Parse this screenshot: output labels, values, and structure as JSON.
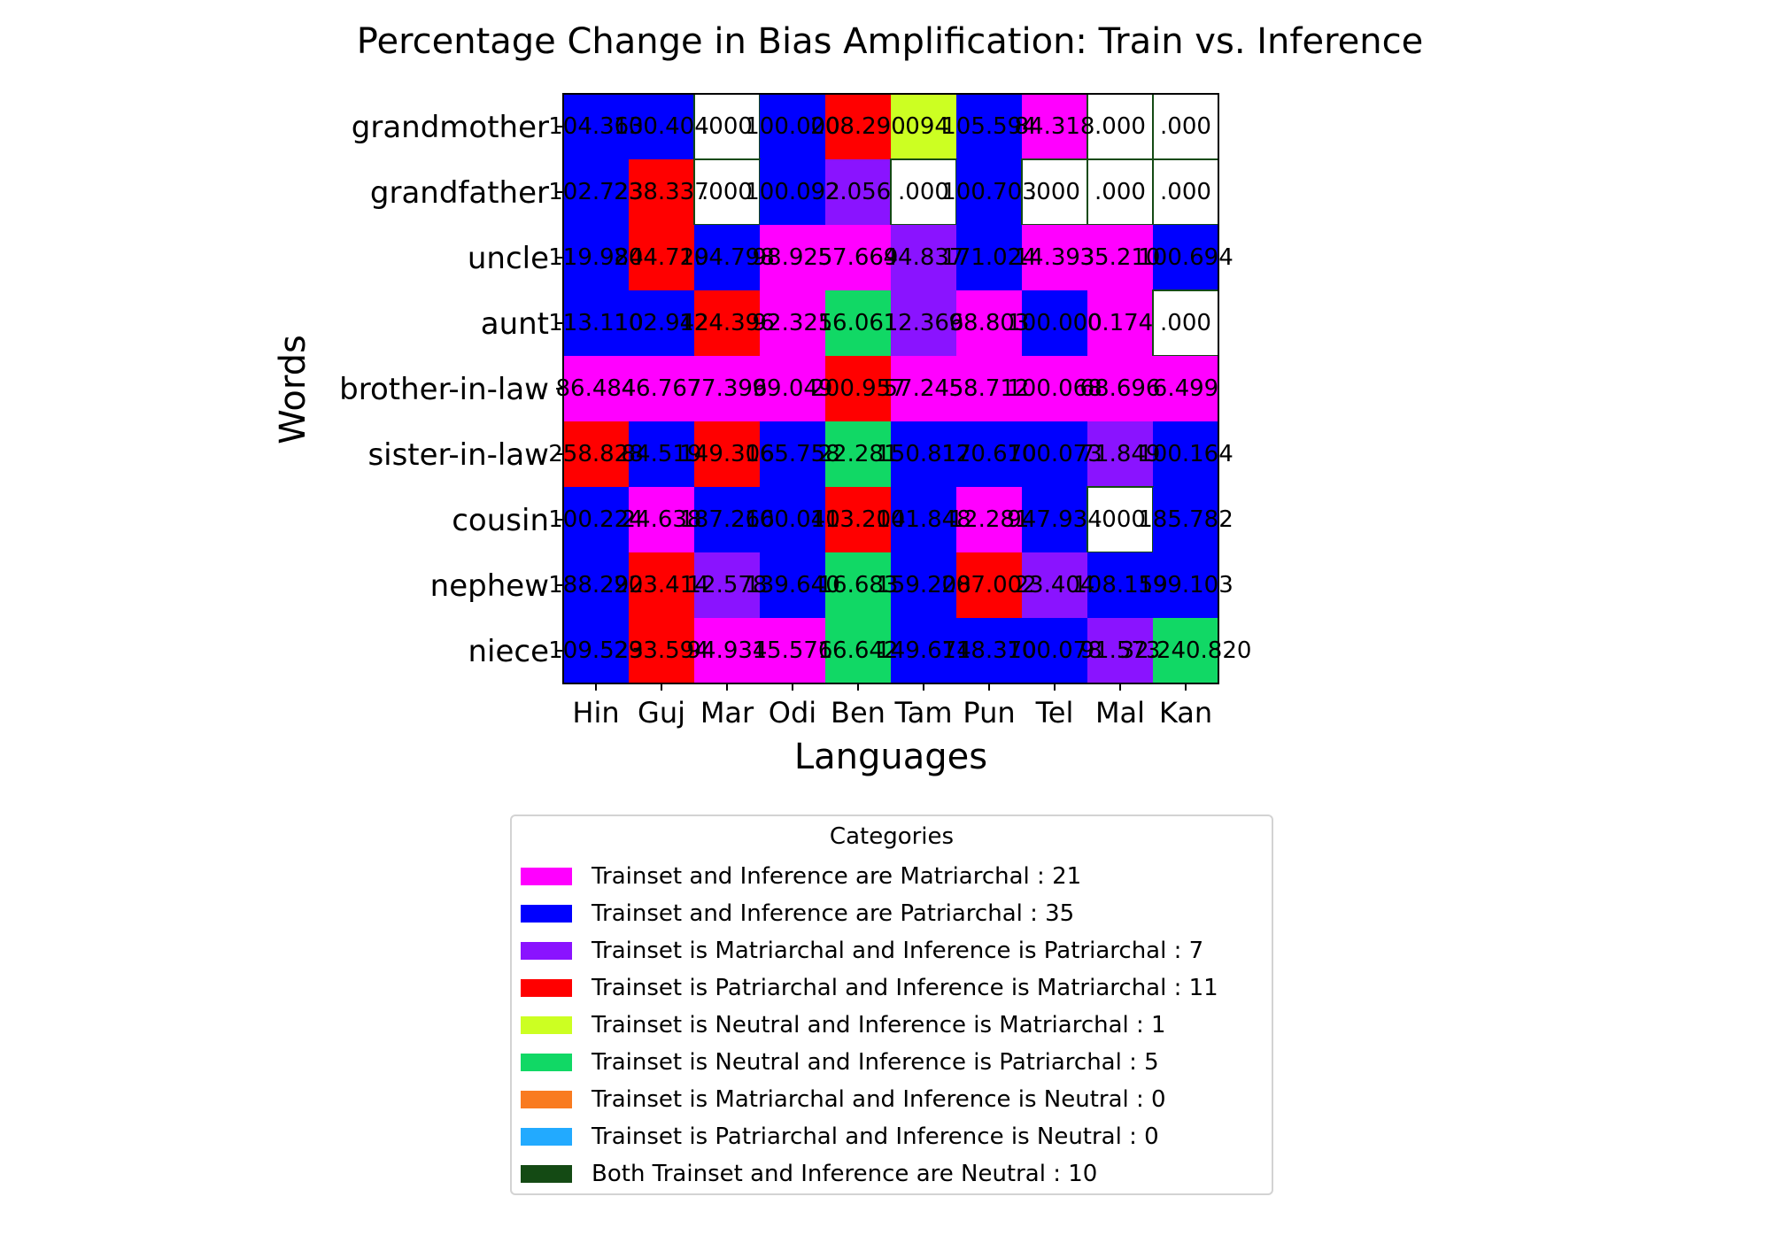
{
  "chart_data": {
    "type": "heatmap",
    "title": "Percentage Change in Bias Amplification: Train vs. Inference",
    "xlabel": "Languages",
    "ylabel": "Words",
    "x_categories": [
      "Hin",
      "Guj",
      "Mar",
      "Odi",
      "Ben",
      "Tam",
      "Pun",
      "Tel",
      "Mal",
      "Kan"
    ],
    "y_categories": [
      "grandmother",
      "grandfather",
      "uncle",
      "aunt",
      "brother-in-law",
      "sister-in-law",
      "cousin",
      "nephew",
      "niece"
    ],
    "cell_labels": [
      [
        "104.363",
        "100.404",
        ".000",
        "100.000",
        "208.290",
        ".094",
        "105.594",
        "84.318",
        ".000",
        ".000"
      ],
      [
        "102.723",
        "238.337",
        ".000",
        "100.092",
        "2.056",
        ".000",
        "100.703",
        ".000",
        ".000",
        ".000"
      ],
      [
        "119.984",
        "204.729",
        "104.798",
        "98.925",
        "57.669",
        "44.837",
        "171.024",
        "14.393",
        "35.210",
        "100.694"
      ],
      [
        "113.110",
        "102.942",
        "124.396",
        "92.325",
        "16.061",
        "12.366",
        "98.803",
        "100.000",
        "0.174",
        ".000"
      ],
      [
        "86.484",
        "46.767",
        "77.396",
        "99.049",
        "200.957",
        "57.245",
        "58.712",
        "100.068",
        "68.696",
        "6.499"
      ],
      [
        "258.828",
        "84.519",
        "149.306",
        "165.758",
        "22.281",
        "150.817",
        "120.670",
        "100.073",
        "71.849",
        "100.164"
      ],
      [
        "100.224",
        "24.638",
        "187.266",
        "100.040",
        "113.204",
        "101.848",
        "12.281",
        "947.934",
        ".000",
        "185.782"
      ],
      [
        "188.292",
        "203.414",
        "12.578",
        "139.640",
        "16.683",
        "159.208",
        "207.002",
        "23.404",
        "108.159",
        "199.103"
      ],
      [
        "109.523",
        "293.594",
        "94.934",
        "15.576",
        "16.642",
        "149.674",
        "118.370",
        "100.078",
        "91.573",
        "32.240.820"
      ]
    ],
    "cell_categories": [
      [
        1,
        1,
        8,
        1,
        3,
        4,
        1,
        0,
        8,
        8
      ],
      [
        1,
        3,
        8,
        1,
        2,
        8,
        1,
        8,
        8,
        8
      ],
      [
        1,
        3,
        1,
        0,
        0,
        2,
        1,
        0,
        0,
        1
      ],
      [
        1,
        1,
        3,
        0,
        5,
        2,
        0,
        1,
        0,
        8
      ],
      [
        0,
        0,
        0,
        0,
        3,
        0,
        0,
        0,
        0,
        0
      ],
      [
        3,
        1,
        3,
        1,
        5,
        1,
        1,
        1,
        2,
        1
      ],
      [
        1,
        0,
        1,
        1,
        3,
        1,
        0,
        1,
        8,
        1
      ],
      [
        1,
        3,
        2,
        1,
        5,
        1,
        3,
        2,
        1,
        1
      ],
      [
        1,
        3,
        0,
        0,
        5,
        1,
        1,
        1,
        2,
        5
      ]
    ],
    "legend_title": "Categories",
    "legend_placement": "below",
    "categories": [
      {
        "label": "Trainset and Inference are Matriarchal : 21",
        "color": "#ff00ff"
      },
      {
        "label": "Trainset and Inference are Patriarchal : 35",
        "color": "#0000ff"
      },
      {
        "label": "Trainset is Matriarchal and Inference is Patriarchal : 7",
        "color": "#8a13ff"
      },
      {
        "label": "Trainset is Patriarchal and Inference is Matriarchal : 11",
        "color": "#ff0000"
      },
      {
        "label": "Trainset is Neutral and Inference is Matriarchal : 1",
        "color": "#ccff22"
      },
      {
        "label": "Trainset is Neutral and Inference is Patriarchal : 5",
        "color": "#11d865"
      },
      {
        "label": "Trainset is Matriarchal and Inference is Neutral : 0",
        "color": "#f97b20"
      },
      {
        "label": "Trainset is Patriarchal and Inference is Neutral : 0",
        "color": "#22aaff"
      },
      {
        "label": "Both Trainset and Inference are Neutral : 10",
        "color": "#144a14"
      }
    ],
    "neutral_cell_fill": "#ffffff",
    "neutral_cell_border": "#144a14"
  }
}
